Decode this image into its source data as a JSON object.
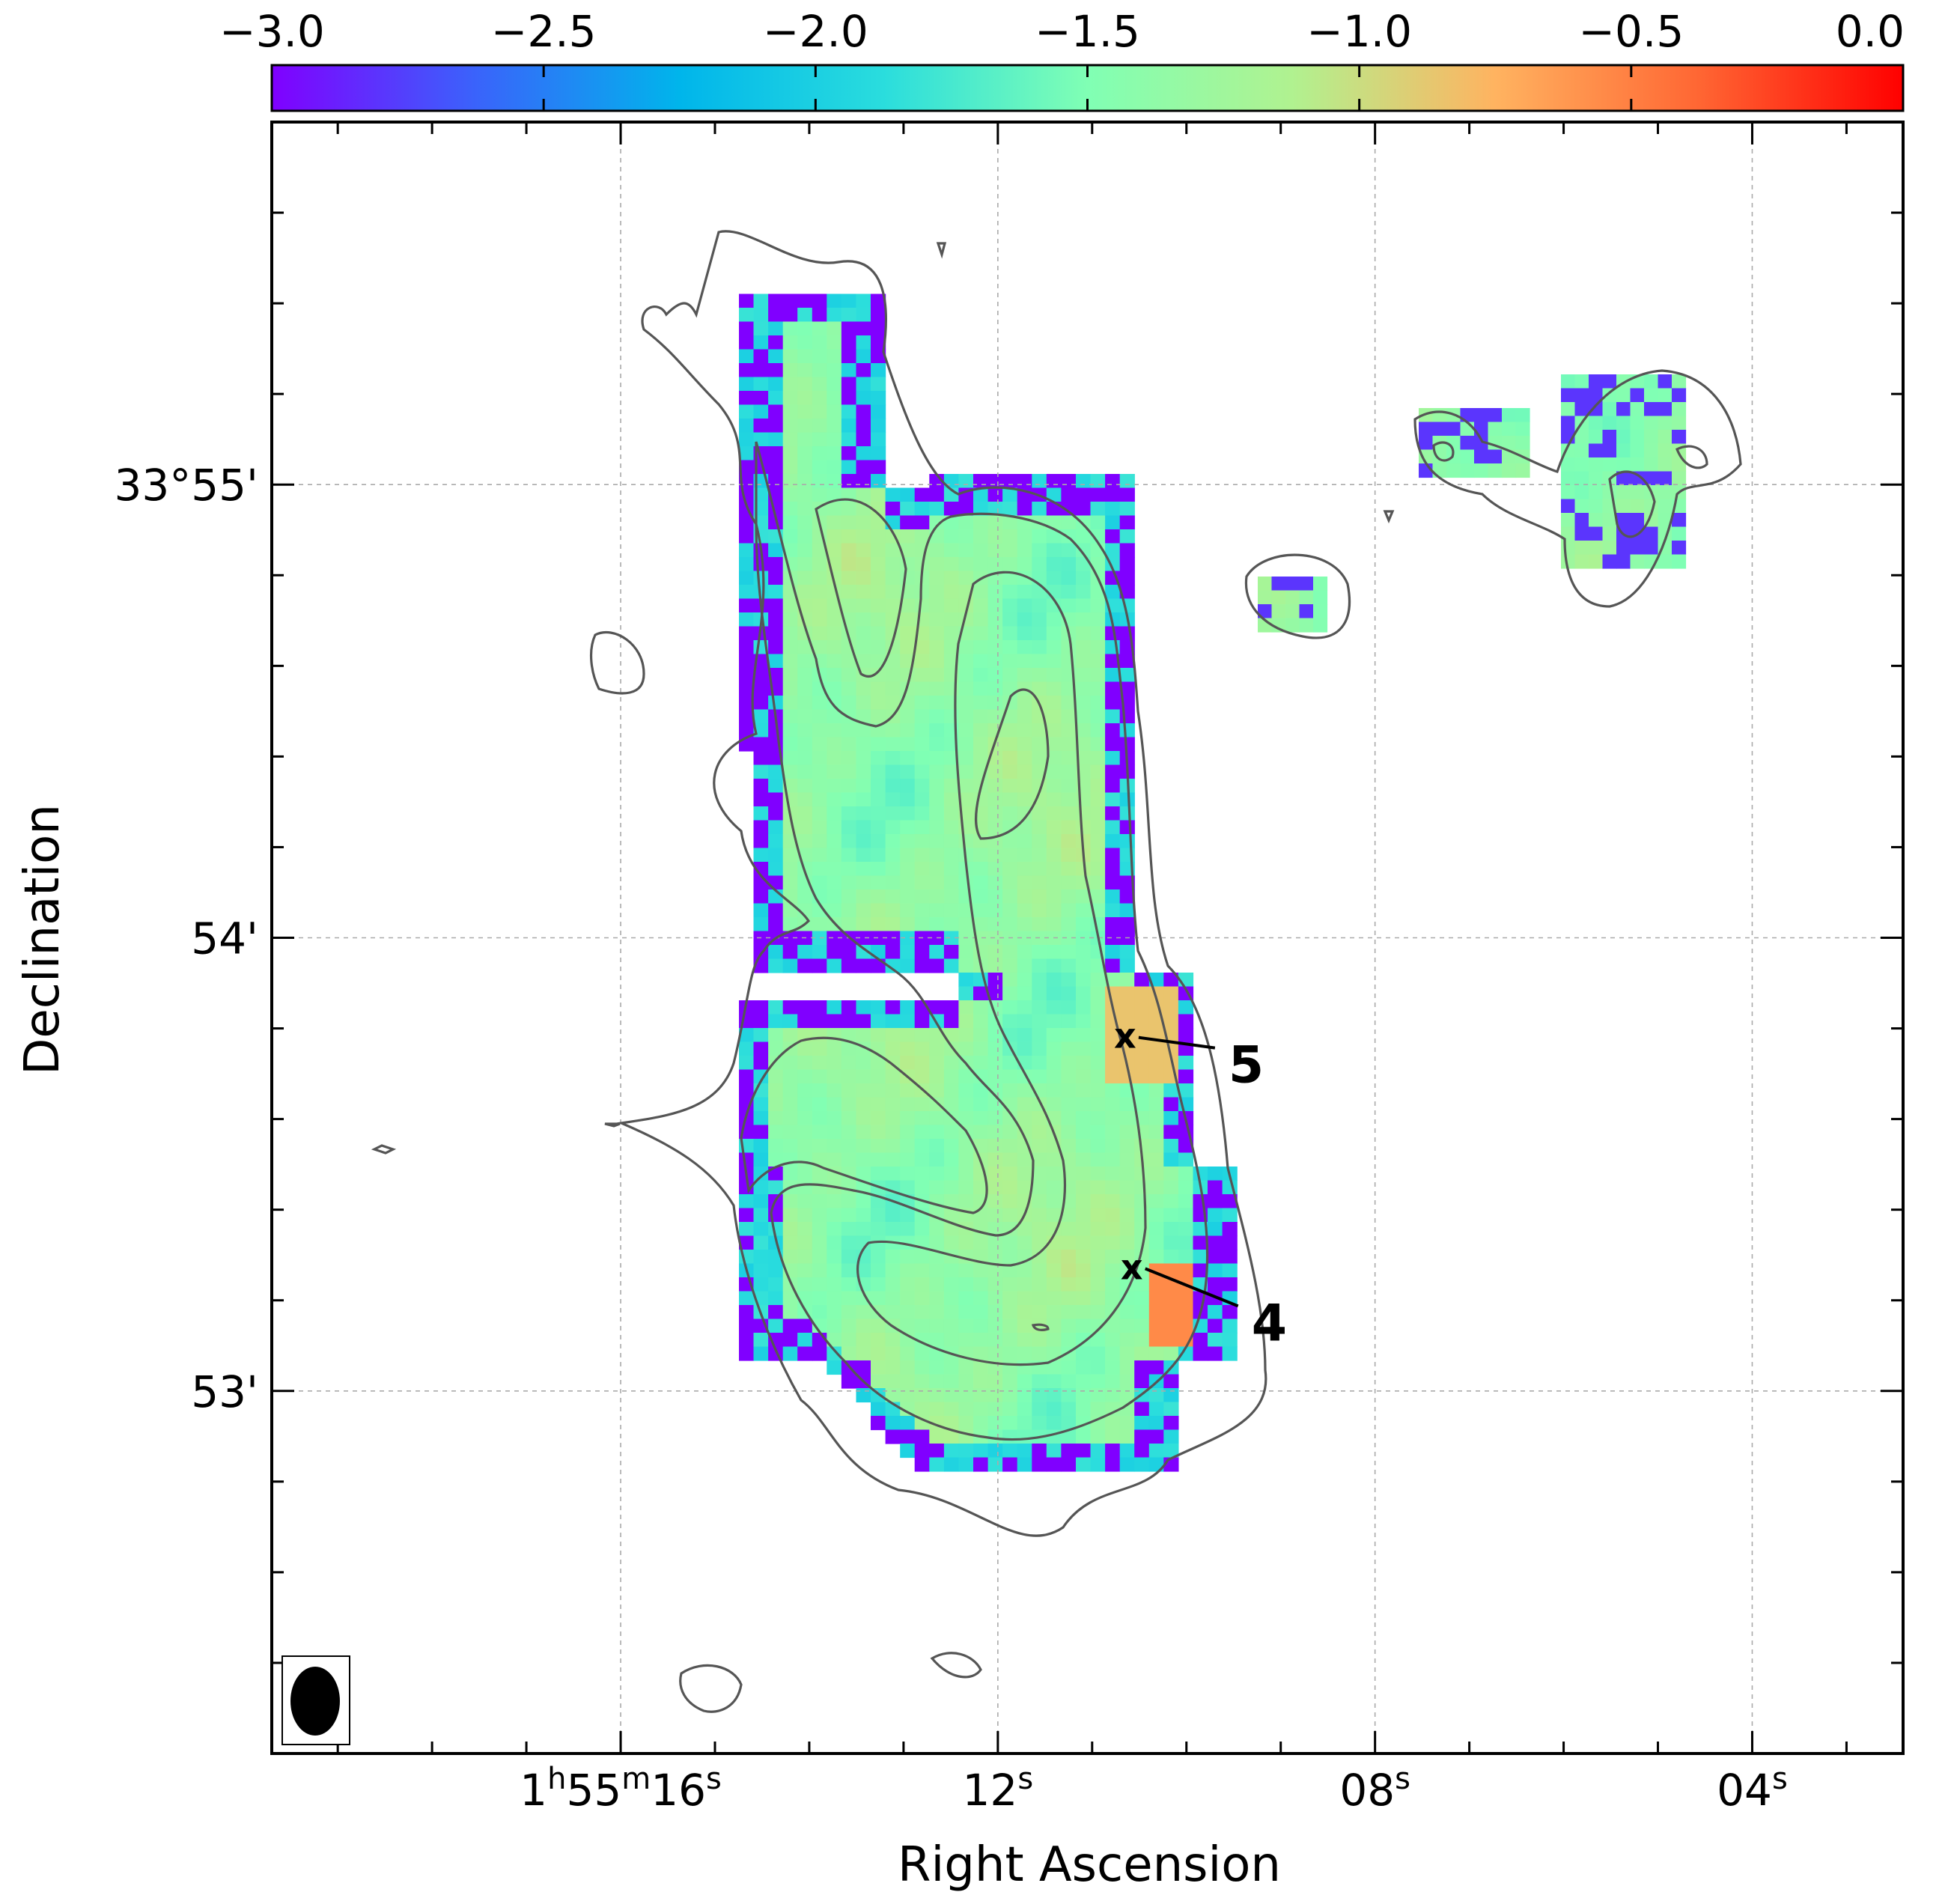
{
  "chart_data": {
    "type": "heatmap",
    "title": "",
    "xlabel": "Right Ascension",
    "ylabel": "Declination",
    "colorbar": {
      "colormap": "rainbow",
      "range": [
        -3.0,
        0.0
      ],
      "tick_values": [
        -3.0,
        -2.5,
        -2.0,
        -1.5,
        -1.0,
        -0.5,
        0.0
      ],
      "tick_labels": [
        "−3.0",
        "−2.5",
        "−2.0",
        "−1.5",
        "−1.0",
        "−0.5",
        "0.0"
      ],
      "position": "top",
      "colors": [
        "#8000ff",
        "#3a63fb",
        "#00b5eb",
        "#2adddd",
        "#80ffb4",
        "#b0f290",
        "#ffb360",
        "#ff6633",
        "#ff0000"
      ]
    },
    "x_axis": {
      "unit": "seconds of RA",
      "range": [
        19.7,
        2.4
      ],
      "ticks": [
        {
          "value": 16,
          "prefix": "1",
          "sup1": "h",
          "mid": "55",
          "sup2": "m",
          "num": "16",
          "sup3": "s"
        },
        {
          "value": 12,
          "prefix": "",
          "sup1": "",
          "mid": "",
          "sup2": "",
          "num": "12",
          "sup3": "s"
        },
        {
          "value": 8,
          "prefix": "",
          "sup1": "",
          "mid": "",
          "sup2": "",
          "num": "08",
          "sup3": "s"
        },
        {
          "value": 4,
          "prefix": "",
          "sup1": "",
          "mid": "",
          "sup2": "",
          "num": "04",
          "sup3": "s"
        }
      ]
    },
    "y_axis": {
      "unit": "arcmin offset from 33 deg",
      "range": [
        52.2,
        55.8
      ],
      "ticks": [
        {
          "value": 55,
          "label": "33°55'"
        },
        {
          "value": 54,
          "label": "54'"
        },
        {
          "value": 53,
          "label": "53'"
        }
      ]
    },
    "grid": true,
    "annotations": [
      {
        "label": "5",
        "marker": "x",
        "ra_s": 10.65,
        "dec_min": 53.78
      },
      {
        "label": "4",
        "marker": "x",
        "ra_s": 10.58,
        "dec_min": 53.27
      }
    ],
    "beam": {
      "shape": "ellipse",
      "position": "bottom-left"
    },
    "contour_color": "#555555"
  }
}
